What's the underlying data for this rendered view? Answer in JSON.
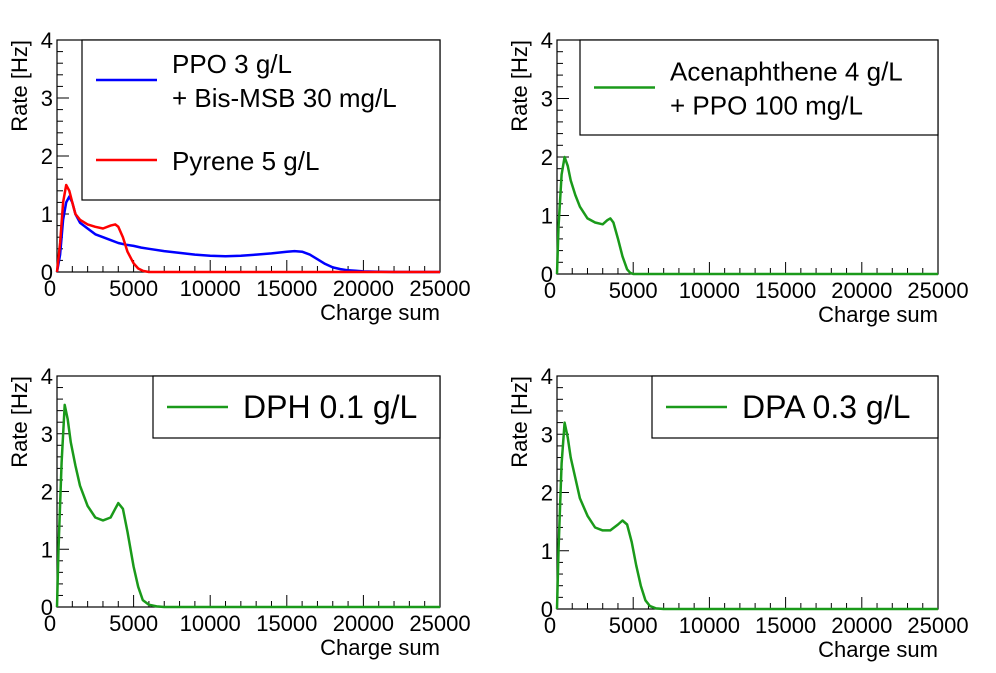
{
  "chart_data": [
    {
      "type": "line",
      "xlabel": "Charge sum",
      "ylabel": "Rate [Hz]",
      "xlim": [
        0,
        25000
      ],
      "ylim": [
        0,
        4
      ],
      "x_ticks": [
        "0",
        "5000",
        "10000",
        "15000",
        "20000",
        "25000"
      ],
      "y_ticks": [
        "0",
        "1",
        "2",
        "3",
        "4"
      ],
      "legend_position": "top-right",
      "series": [
        {
          "name": "PPO 3 g/L",
          "name_line2": "+ Bis-MSB 30 mg/L",
          "color": "#0000ff",
          "x": [
            0,
            200,
            400,
            600,
            800,
            1000,
            1200,
            1500,
            2000,
            2500,
            3000,
            3500,
            4000,
            4500,
            5000,
            5500,
            6000,
            7000,
            8000,
            9000,
            10000,
            11000,
            12000,
            13000,
            14000,
            15000,
            15500,
            16000,
            16500,
            17000,
            17500,
            18000,
            18500,
            19000,
            19500,
            20000,
            21000,
            22000,
            23000,
            24000,
            25000
          ],
          "y": [
            0,
            0.3,
            0.9,
            1.2,
            1.3,
            1.2,
            1.0,
            0.85,
            0.75,
            0.65,
            0.6,
            0.55,
            0.5,
            0.47,
            0.45,
            0.42,
            0.4,
            0.36,
            0.33,
            0.3,
            0.28,
            0.27,
            0.28,
            0.3,
            0.32,
            0.35,
            0.36,
            0.35,
            0.3,
            0.22,
            0.14,
            0.08,
            0.05,
            0.03,
            0.02,
            0.01,
            0.005,
            0,
            0,
            0,
            0
          ]
        },
        {
          "name": "Pyrene 5 g/L",
          "color": "#ff0000",
          "x": [
            0,
            200,
            400,
            600,
            800,
            1000,
            1200,
            1500,
            2000,
            2500,
            3000,
            3500,
            3800,
            4000,
            4300,
            4600,
            5000,
            5300,
            5600,
            6000,
            7000,
            8000,
            25000
          ],
          "y": [
            0,
            0.5,
            1.2,
            1.5,
            1.4,
            1.2,
            1.0,
            0.9,
            0.82,
            0.78,
            0.75,
            0.8,
            0.82,
            0.78,
            0.6,
            0.35,
            0.15,
            0.06,
            0.02,
            0,
            0,
            0,
            0
          ]
        }
      ]
    },
    {
      "type": "line",
      "xlabel": "Charge sum",
      "ylabel": "Rate [Hz]",
      "xlim": [
        0,
        25000
      ],
      "ylim": [
        0,
        4
      ],
      "x_ticks": [
        "0",
        "5000",
        "10000",
        "15000",
        "20000",
        "25000"
      ],
      "y_ticks": [
        "0",
        "1",
        "2",
        "3",
        "4"
      ],
      "legend_position": "top-right",
      "series": [
        {
          "name": "Acenaphthene 4 g/L",
          "name_line2": "+ PPO 100 mg/L",
          "color": "#1a9a1a",
          "x": [
            0,
            100,
            300,
            500,
            700,
            900,
            1200,
            1500,
            2000,
            2500,
            3000,
            3300,
            3500,
            3700,
            4000,
            4300,
            4600,
            4800,
            5000,
            6000,
            25000
          ],
          "y": [
            0,
            0.8,
            1.7,
            2.0,
            1.85,
            1.6,
            1.35,
            1.15,
            0.95,
            0.88,
            0.85,
            0.92,
            0.95,
            0.88,
            0.6,
            0.3,
            0.08,
            0.02,
            0,
            0,
            0
          ]
        }
      ]
    },
    {
      "type": "line",
      "xlabel": "Charge sum",
      "ylabel": "Rate [Hz]",
      "xlim": [
        0,
        25000
      ],
      "ylim": [
        0,
        4
      ],
      "x_ticks": [
        "0",
        "5000",
        "10000",
        "15000",
        "20000",
        "25000"
      ],
      "y_ticks": [
        "0",
        "1",
        "2",
        "3",
        "4"
      ],
      "legend_position": "top-right",
      "series": [
        {
          "name": "DPH 0.1 g/L",
          "color": "#1a9a1a",
          "x": [
            0,
            100,
            300,
            500,
            700,
            900,
            1200,
            1500,
            2000,
            2500,
            3000,
            3500,
            3800,
            4000,
            4300,
            4600,
            5000,
            5300,
            5600,
            6000,
            6500,
            7000,
            25000
          ],
          "y": [
            0,
            1.0,
            2.5,
            3.5,
            3.25,
            2.85,
            2.45,
            2.1,
            1.75,
            1.55,
            1.5,
            1.55,
            1.7,
            1.8,
            1.7,
            1.3,
            0.7,
            0.35,
            0.12,
            0.04,
            0.01,
            0,
            0
          ]
        }
      ]
    },
    {
      "type": "line",
      "xlabel": "Charge sum",
      "ylabel": "Rate [Hz]",
      "xlim": [
        0,
        25000
      ],
      "ylim": [
        0,
        4
      ],
      "x_ticks": [
        "0",
        "5000",
        "10000",
        "15000",
        "20000",
        "25000"
      ],
      "y_ticks": [
        "0",
        "1",
        "2",
        "3",
        "4"
      ],
      "legend_position": "top-right",
      "series": [
        {
          "name": "DPA 0.3 g/L",
          "color": "#1a9a1a",
          "x": [
            0,
            100,
            300,
            500,
            700,
            900,
            1200,
            1500,
            2000,
            2500,
            3000,
            3500,
            4000,
            4300,
            4600,
            4900,
            5200,
            5500,
            5800,
            6100,
            6500,
            7000,
            25000
          ],
          "y": [
            0,
            1.0,
            2.5,
            3.2,
            2.95,
            2.6,
            2.25,
            1.9,
            1.6,
            1.4,
            1.35,
            1.35,
            1.45,
            1.52,
            1.45,
            1.15,
            0.75,
            0.4,
            0.15,
            0.05,
            0.01,
            0,
            0
          ]
        }
      ]
    }
  ]
}
